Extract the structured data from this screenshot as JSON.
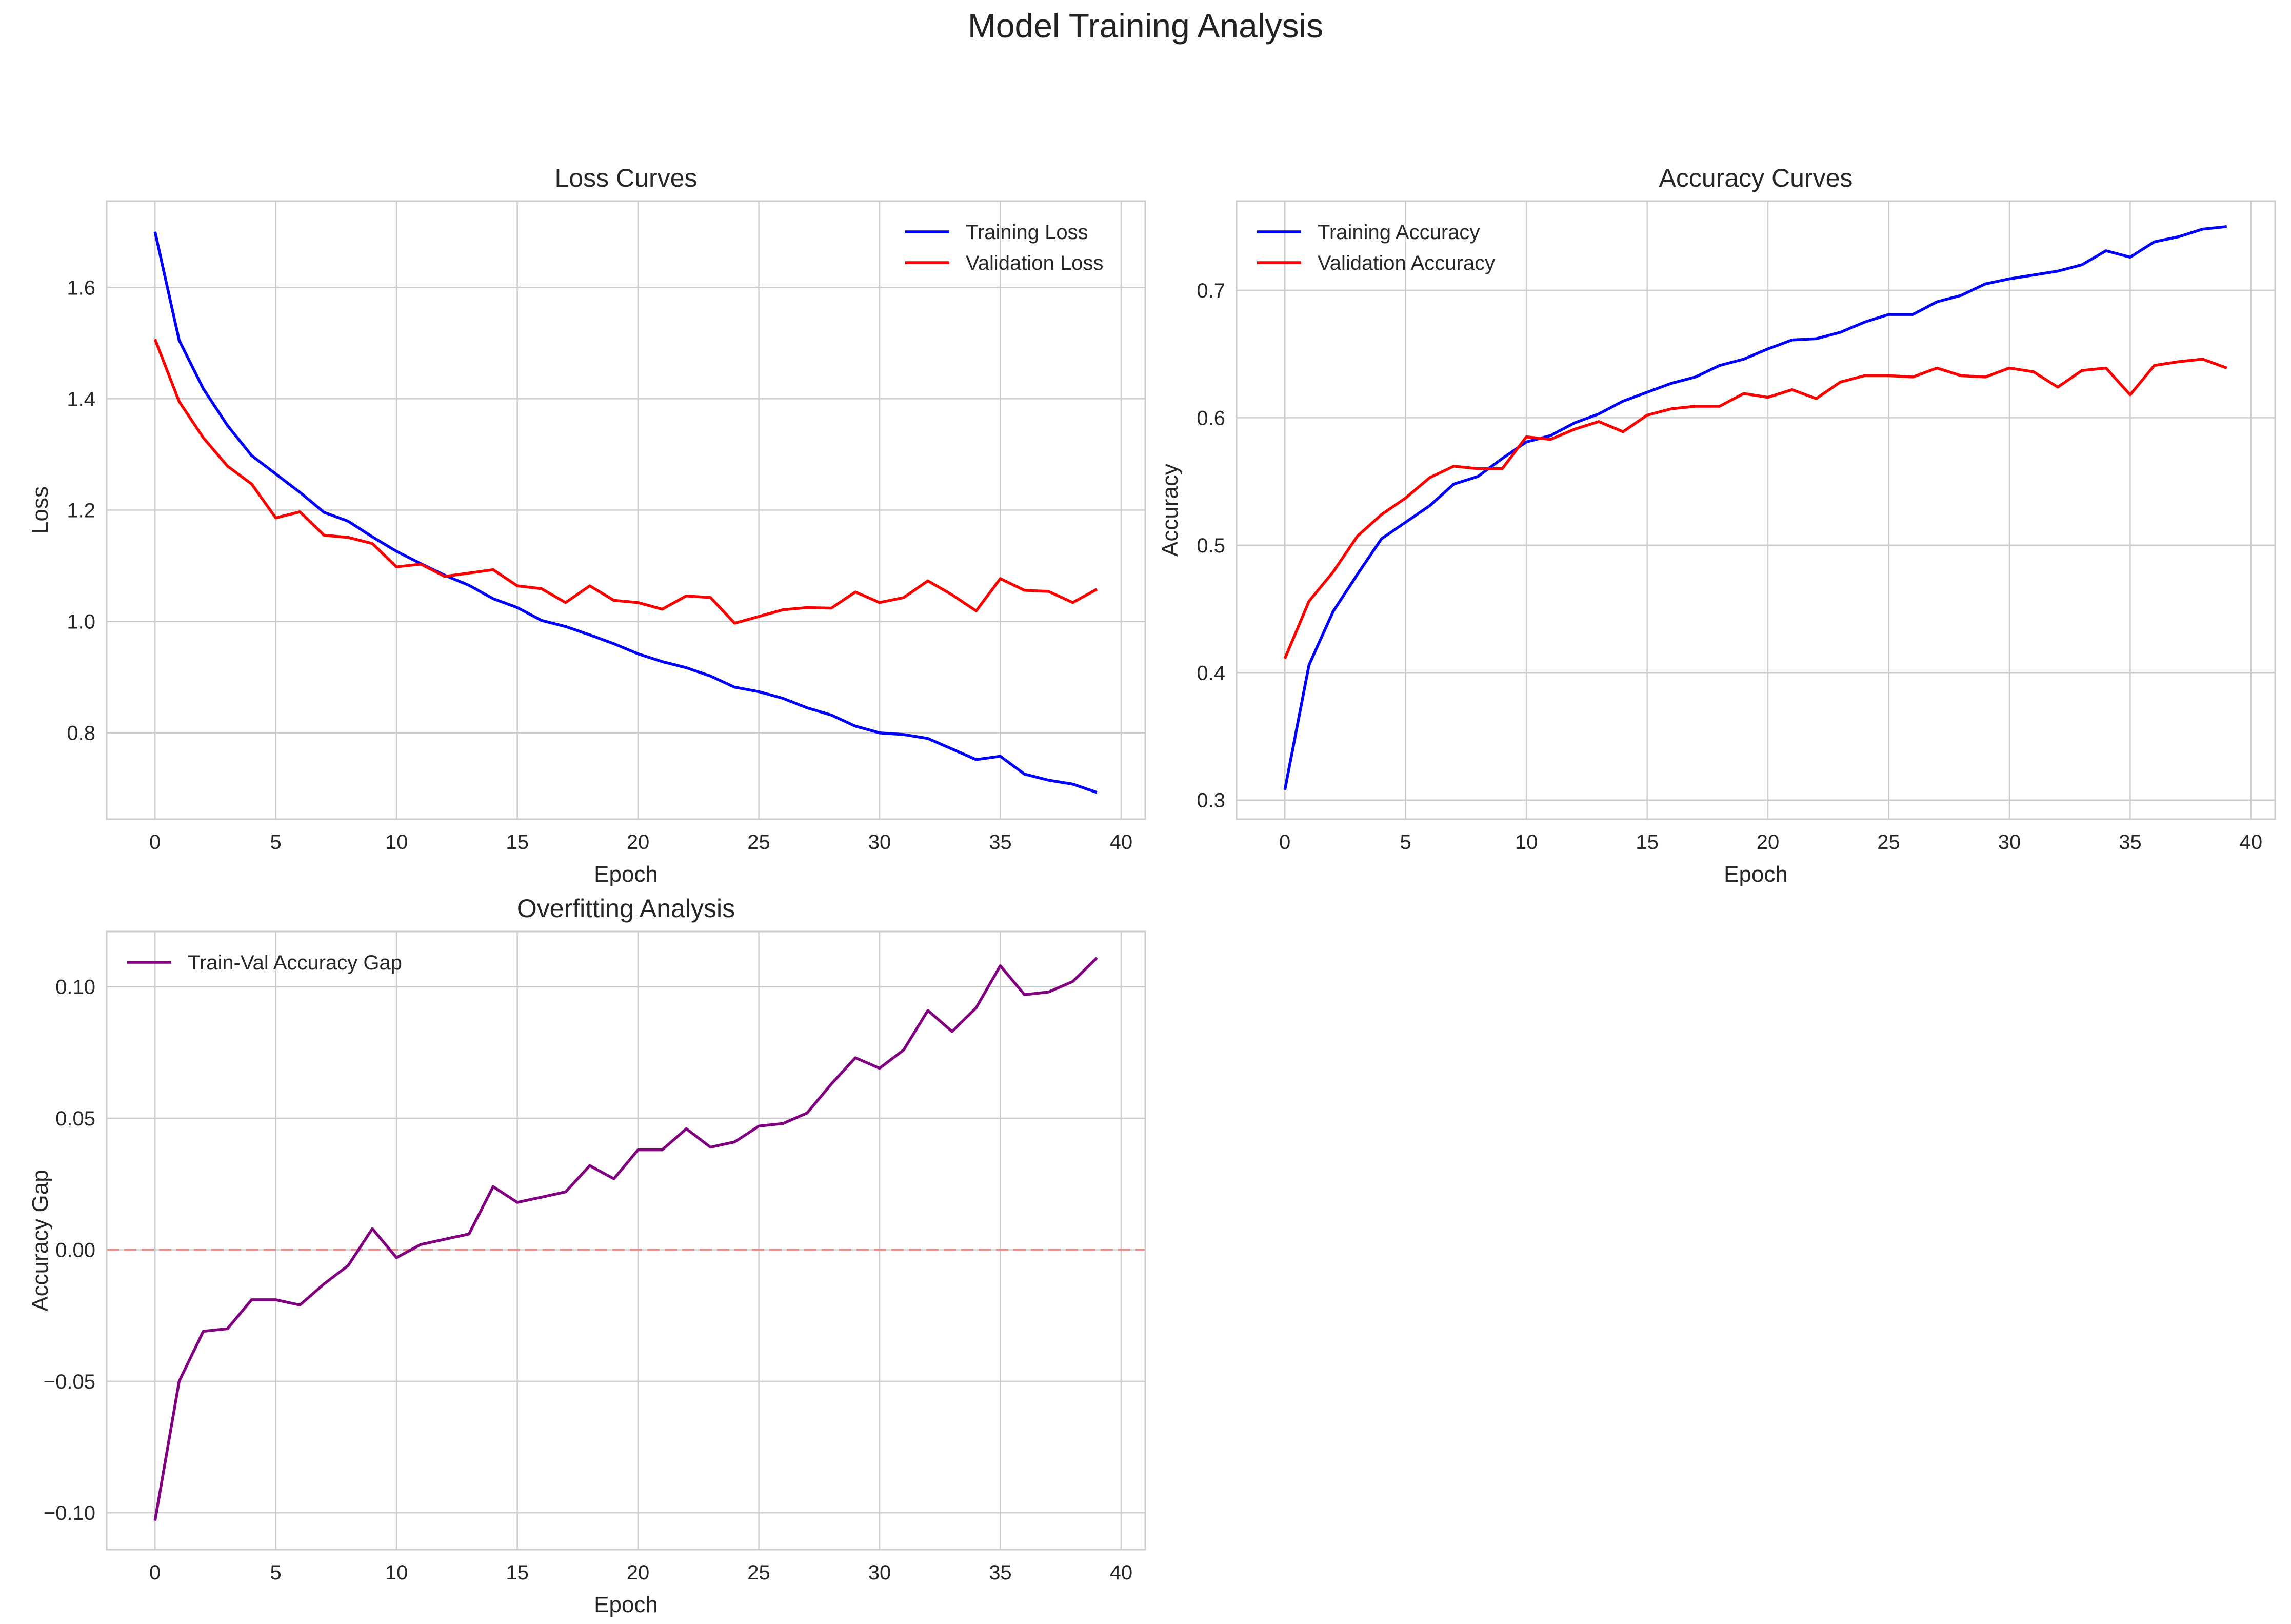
{
  "figure": {
    "title": "Model Training Analysis"
  },
  "colors": {
    "training": "#0000ff",
    "validation": "#ff0000",
    "gap": "#800080",
    "zero_line": "#e88a8a",
    "grid": "#cccccc",
    "spine": "#cccccc"
  },
  "chart_data": [
    {
      "type": "line",
      "title": "Loss Curves",
      "xlabel": "Epoch",
      "ylabel": "Loss",
      "xlim": [
        -2,
        41
      ],
      "ylim": [
        0.645,
        1.755
      ],
      "xticks": [
        0,
        5,
        10,
        15,
        20,
        25,
        30,
        35,
        40
      ],
      "yticks": [
        0.8,
        1.0,
        1.2,
        1.4,
        1.6
      ],
      "ytick_labels": [
        "0.8",
        "1.0",
        "1.2",
        "1.4",
        "1.6"
      ],
      "grid": true,
      "legend": "top-right",
      "x": [
        0,
        1,
        2,
        3,
        4,
        5,
        6,
        7,
        8,
        9,
        10,
        11,
        12,
        13,
        14,
        15,
        16,
        17,
        18,
        19,
        20,
        21,
        22,
        23,
        24,
        25,
        26,
        27,
        28,
        29,
        30,
        31,
        32,
        33,
        34,
        35,
        36,
        37,
        38,
        39
      ],
      "series": [
        {
          "name": "Training Loss",
          "color": "#0000ff",
          "values": [
            1.7,
            1.505,
            1.418,
            1.352,
            1.298,
            1.265,
            1.232,
            1.196,
            1.18,
            1.152,
            1.126,
            1.104,
            1.083,
            1.065,
            1.041,
            1.025,
            1.002,
            0.991,
            0.976,
            0.96,
            0.942,
            0.928,
            0.917,
            0.902,
            0.882,
            0.874,
            0.862,
            0.845,
            0.832,
            0.812,
            0.8,
            0.797,
            0.79,
            0.771,
            0.752,
            0.758,
            0.726,
            0.715,
            0.708,
            0.693
          ]
        },
        {
          "name": "Validation Loss",
          "color": "#ff0000",
          "values": [
            1.507,
            1.395,
            1.33,
            1.279,
            1.247,
            1.186,
            1.197,
            1.155,
            1.151,
            1.14,
            1.098,
            1.103,
            1.081,
            1.087,
            1.093,
            1.064,
            1.059,
            1.034,
            1.064,
            1.038,
            1.034,
            1.022,
            1.046,
            1.043,
            0.997,
            1.009,
            1.021,
            1.025,
            1.024,
            1.053,
            1.034,
            1.043,
            1.073,
            1.048,
            1.019,
            1.077,
            1.056,
            1.054,
            1.034,
            1.058
          ]
        }
      ]
    },
    {
      "type": "line",
      "title": "Accuracy Curves",
      "xlabel": "Epoch",
      "ylabel": "Accuracy",
      "xlim": [
        -2,
        41
      ],
      "ylim": [
        0.285,
        0.77
      ],
      "xticks": [
        0,
        5,
        10,
        15,
        20,
        25,
        30,
        35,
        40
      ],
      "yticks": [
        0.3,
        0.4,
        0.5,
        0.6,
        0.7
      ],
      "ytick_labels": [
        "0.3",
        "0.4",
        "0.5",
        "0.6",
        "0.7"
      ],
      "grid": true,
      "legend": "top-left",
      "x": [
        0,
        1,
        2,
        3,
        4,
        5,
        6,
        7,
        8,
        9,
        10,
        11,
        12,
        13,
        14,
        15,
        16,
        17,
        18,
        19,
        20,
        21,
        22,
        23,
        24,
        25,
        26,
        27,
        28,
        29,
        30,
        31,
        32,
        33,
        34,
        35,
        36,
        37,
        38,
        39
      ],
      "series": [
        {
          "name": "Training Accuracy",
          "color": "#0000ff",
          "values": [
            0.308,
            0.406,
            0.448,
            0.477,
            0.505,
            0.518,
            0.531,
            0.548,
            0.554,
            0.568,
            0.581,
            0.586,
            0.596,
            0.603,
            0.613,
            0.62,
            0.627,
            0.632,
            0.641,
            0.646,
            0.654,
            0.661,
            0.662,
            0.667,
            0.675,
            0.681,
            0.681,
            0.691,
            0.696,
            0.705,
            0.709,
            0.712,
            0.715,
            0.72,
            0.731,
            0.726,
            0.738,
            0.742,
            0.748,
            0.75
          ]
        },
        {
          "name": "Validation Accuracy",
          "color": "#ff0000",
          "values": [
            0.411,
            0.456,
            0.479,
            0.507,
            0.524,
            0.537,
            0.553,
            0.562,
            0.56,
            0.56,
            0.585,
            0.583,
            0.591,
            0.597,
            0.589,
            0.602,
            0.607,
            0.609,
            0.609,
            0.619,
            0.616,
            0.622,
            0.615,
            0.628,
            0.633,
            0.633,
            0.632,
            0.639,
            0.633,
            0.632,
            0.639,
            0.636,
            0.624,
            0.637,
            0.639,
            0.618,
            0.641,
            0.644,
            0.646,
            0.639
          ]
        }
      ]
    },
    {
      "type": "line",
      "title": "Overfitting Analysis",
      "xlabel": "Epoch",
      "ylabel": "Accuracy Gap",
      "xlim": [
        -2,
        41
      ],
      "ylim": [
        -0.114,
        0.121
      ],
      "xticks": [
        0,
        5,
        10,
        15,
        20,
        25,
        30,
        35,
        40
      ],
      "yticks": [
        -0.1,
        -0.05,
        0.0,
        0.05,
        0.1
      ],
      "ytick_labels": [
        "−0.10",
        "−0.05",
        "0.00",
        "0.05",
        "0.10"
      ],
      "grid": true,
      "legend": "top-left",
      "reference_line": {
        "y": 0,
        "style": "dashed",
        "color": "#e88a8a"
      },
      "x": [
        0,
        1,
        2,
        3,
        4,
        5,
        6,
        7,
        8,
        9,
        10,
        11,
        12,
        13,
        14,
        15,
        16,
        17,
        18,
        19,
        20,
        21,
        22,
        23,
        24,
        25,
        26,
        27,
        28,
        29,
        30,
        31,
        32,
        33,
        34,
        35,
        36,
        37,
        38,
        39
      ],
      "series": [
        {
          "name": "Train-Val Accuracy Gap",
          "color": "#800080",
          "values": [
            -0.103,
            -0.05,
            -0.031,
            -0.03,
            -0.019,
            -0.019,
            -0.021,
            -0.013,
            -0.006,
            0.008,
            -0.003,
            0.002,
            0.004,
            0.006,
            0.024,
            0.018,
            0.02,
            0.022,
            0.032,
            0.027,
            0.038,
            0.038,
            0.046,
            0.039,
            0.041,
            0.047,
            0.048,
            0.052,
            0.063,
            0.073,
            0.069,
            0.076,
            0.091,
            0.083,
            0.092,
            0.108,
            0.097,
            0.098,
            0.102,
            0.111
          ]
        }
      ]
    }
  ]
}
